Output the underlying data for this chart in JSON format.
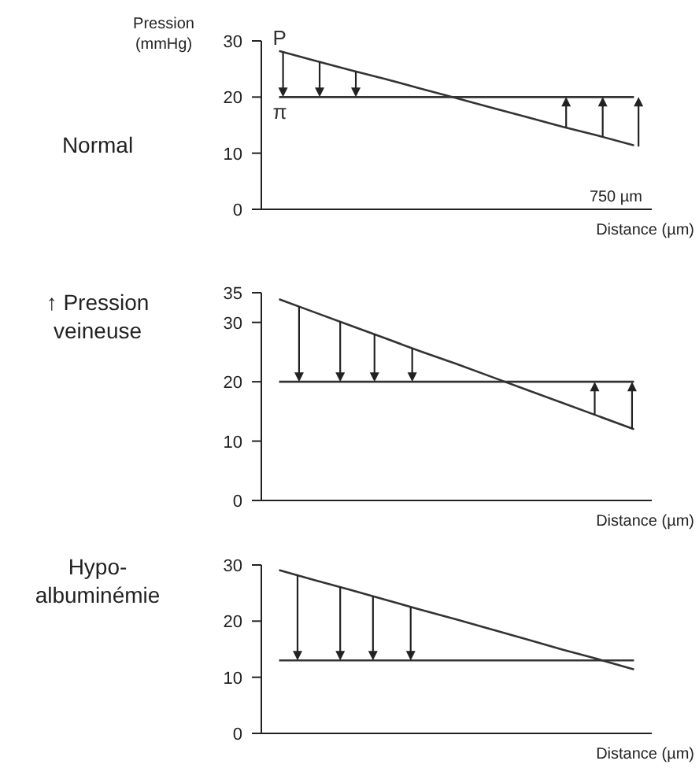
{
  "chart_data": [
    {
      "type": "line",
      "title": "Normal",
      "ylabel": "Pression (mmHg)",
      "xlabel": "Distance (µm)",
      "categories": [
        null,
        null,
        null,
        null,
        null,
        null,
        null,
        null,
        null,
        null,
        null
      ],
      "ylim": [
        0,
        30
      ],
      "yticks": [
        0,
        10,
        20,
        30
      ],
      "grid": false,
      "tick_labels": "y",
      "annotations": [
        "750 µm"
      ],
      "series": [
        {
          "name": "P",
          "color": "#333333",
          "values": [
            28.2,
            26.5,
            24.8,
            23.2,
            21.5,
            19.8,
            18.1,
            16.4,
            14.7,
            13.1,
            11.4
          ]
        },
        {
          "name": "π",
          "color": "#333333",
          "values": [
            20,
            20,
            20,
            20,
            20,
            20,
            20,
            20,
            20,
            20,
            20
          ]
        }
      ]
    },
    {
      "type": "line",
      "title": "↑ Pression veineuse",
      "xlabel": "Distance (µm)",
      "categories": [
        null,
        null,
        null,
        null,
        null,
        null,
        null,
        null,
        null,
        null,
        null
      ],
      "ylim": [
        0,
        35
      ],
      "yticks": [
        0,
        10,
        20,
        30,
        35
      ],
      "grid": false,
      "tick_labels": "y",
      "series": [
        {
          "color": "#333333",
          "values": [
            33.9,
            31.7,
            29.5,
            27.3,
            25.1,
            23.0,
            20.8,
            18.6,
            16.4,
            14.2,
            12.0
          ]
        },
        {
          "color": "#333333",
          "values": [
            20,
            20,
            20,
            20,
            20,
            20,
            20,
            20,
            20,
            20,
            20
          ]
        }
      ]
    },
    {
      "type": "line",
      "title": "Hypo-albuminémie",
      "xlabel": "Distance (µm)",
      "categories": [
        null,
        null,
        null,
        null,
        null,
        null,
        null,
        null,
        null,
        null,
        null
      ],
      "ylim": [
        0,
        30
      ],
      "yticks": [
        0,
        10,
        20,
        30
      ],
      "grid": false,
      "tick_labels": "y",
      "series": [
        {
          "color": "#333333",
          "values": [
            29.1,
            27.3,
            25.6,
            23.8,
            22.0,
            20.3,
            18.5,
            16.7,
            14.9,
            13.2,
            11.4
          ]
        },
        {
          "color": "#333333",
          "values": [
            13,
            13,
            13,
            13,
            13,
            13,
            13,
            13,
            13,
            13,
            13
          ]
        }
      ]
    }
  ]
}
